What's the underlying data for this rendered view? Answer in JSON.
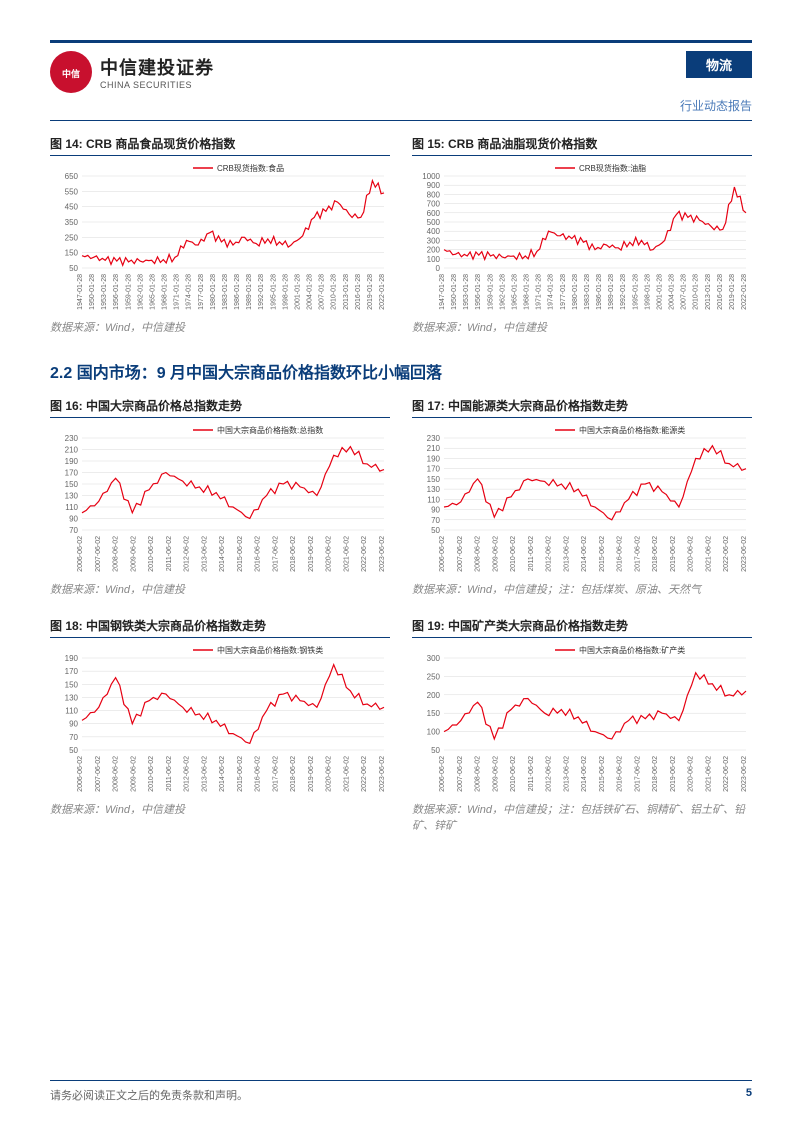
{
  "header": {
    "logo_cn": "中信建投证券",
    "logo_en": "CHINA SECURITIES",
    "logo_abbr": "CITIC",
    "category": "物流",
    "report_type": "行业动态报告"
  },
  "section_title": "2.2 国内市场：9 月中国大宗商品价格指数环比小幅回落",
  "figures": {
    "fig14": {
      "label": "图 14: CRB 商品食品现货价格指数",
      "legend": "CRB现货指数:食品",
      "source": "数据来源：Wind，中信建投",
      "type": "line",
      "line_color": "#e60012",
      "background_color": "#ffffff",
      "grid_color": "#d9d9d9",
      "ylim": [
        50,
        650
      ],
      "ytick_step": 100,
      "x_labels": [
        "1947-01-28",
        "1950-01-28",
        "1953-01-28",
        "1956-01-28",
        "1959-01-28",
        "1962-01-28",
        "1965-01-28",
        "1968-01-28",
        "1971-01-28",
        "1974-01-28",
        "1977-01-28",
        "1980-01-28",
        "1983-01-28",
        "1986-01-28",
        "1989-01-28",
        "1992-01-28",
        "1995-01-28",
        "1998-01-28",
        "2001-01-28",
        "2004-01-28",
        "2007-01-28",
        "2010-01-28",
        "2013-01-28",
        "2016-01-28",
        "2019-01-28",
        "2022-01-28"
      ],
      "values": [
        130,
        120,
        100,
        95,
        90,
        95,
        100,
        105,
        120,
        230,
        200,
        280,
        220,
        200,
        250,
        210,
        240,
        220,
        200,
        260,
        380,
        420,
        480,
        400,
        380,
        620,
        540
      ],
      "label_fontsize": 8,
      "line_width": 1.2
    },
    "fig15": {
      "label": "图 15: CRB 商品油脂现货价格指数",
      "legend": "CRB现货指数:油脂",
      "source": "数据来源：Wind，中信建投",
      "type": "line",
      "line_color": "#e60012",
      "background_color": "#ffffff",
      "grid_color": "#d9d9d9",
      "ylim": [
        0,
        1000
      ],
      "ytick_step": 100,
      "x_labels": [
        "1947-01-28",
        "1950-01-28",
        "1953-01-28",
        "1956-01-28",
        "1959-01-28",
        "1962-01-28",
        "1965-01-28",
        "1968-01-28",
        "1971-01-28",
        "1974-01-28",
        "1977-01-28",
        "1980-01-28",
        "1983-01-28",
        "1986-01-28",
        "1989-01-28",
        "1992-01-28",
        "1995-01-28",
        "1998-01-28",
        "2001-01-28",
        "2004-01-28",
        "2007-01-28",
        "2010-01-28",
        "2013-01-28",
        "2016-01-28",
        "2019-01-28",
        "2022-01-28"
      ],
      "values": [
        200,
        150,
        130,
        140,
        130,
        120,
        130,
        130,
        180,
        400,
        350,
        320,
        280,
        200,
        250,
        220,
        280,
        300,
        200,
        300,
        580,
        550,
        520,
        450,
        420,
        880,
        600
      ],
      "label_fontsize": 8,
      "line_width": 1.2
    },
    "fig16": {
      "label": "图 16: 中国大宗商品价格总指数走势",
      "legend": "中国大宗商品价格指数:总指数",
      "source": "数据来源：Wind，中信建投",
      "type": "line",
      "line_color": "#e60012",
      "background_color": "#ffffff",
      "grid_color": "#d9d9d9",
      "ylim": [
        70,
        230
      ],
      "ytick_step": 20,
      "x_labels": [
        "2006-06-02",
        "2007-06-02",
        "2008-06-02",
        "2009-06-02",
        "2010-06-02",
        "2011-06-02",
        "2012-06-02",
        "2013-06-02",
        "2014-06-02",
        "2015-06-02",
        "2016-06-02",
        "2017-06-02",
        "2018-06-02",
        "2019-06-02",
        "2020-06-02",
        "2021-06-02",
        "2022-06-02",
        "2023-06-02"
      ],
      "values": [
        100,
        120,
        160,
        100,
        140,
        170,
        155,
        145,
        135,
        110,
        90,
        130,
        150,
        145,
        130,
        200,
        215,
        185,
        175
      ],
      "label_fontsize": 8,
      "line_width": 1.2
    },
    "fig17": {
      "label": "图 17: 中国能源类大宗商品价格指数走势",
      "legend": "中国大宗商品价格指数:能源类",
      "source": "数据来源：Wind，中信建投；注：包括煤炭、原油、天然气",
      "type": "line",
      "line_color": "#e60012",
      "background_color": "#ffffff",
      "grid_color": "#d9d9d9",
      "ylim": [
        50,
        230
      ],
      "ytick_step": 20,
      "x_labels": [
        "2006-06-02",
        "2007-06-02",
        "2008-06-02",
        "2009-06-02",
        "2010-06-02",
        "2011-06-02",
        "2012-06-02",
        "2013-06-02",
        "2014-06-02",
        "2015-06-02",
        "2016-06-02",
        "2017-06-02",
        "2018-06-02",
        "2019-06-02",
        "2020-06-02",
        "2021-06-02",
        "2022-06-02",
        "2023-06-02"
      ],
      "values": [
        95,
        105,
        150,
        75,
        115,
        150,
        145,
        140,
        130,
        95,
        70,
        110,
        140,
        125,
        95,
        190,
        215,
        180,
        170
      ],
      "label_fontsize": 8,
      "line_width": 1.2
    },
    "fig18": {
      "label": "图 18: 中国钢铁类大宗商品价格指数走势",
      "legend": "中国大宗商品价格指数:钢铁类",
      "source": "数据来源：Wind，中信建投",
      "type": "line",
      "line_color": "#e60012",
      "background_color": "#ffffff",
      "grid_color": "#d9d9d9",
      "ylim": [
        50,
        190
      ],
      "ytick_step": 20,
      "x_labels": [
        "2006-06-02",
        "2007-06-02",
        "2008-06-02",
        "2009-06-02",
        "2010-06-02",
        "2011-06-02",
        "2012-06-02",
        "2013-06-02",
        "2014-06-02",
        "2015-06-02",
        "2016-06-02",
        "2017-06-02",
        "2018-06-02",
        "2019-06-02",
        "2020-06-02",
        "2021-06-02",
        "2022-06-02",
        "2023-06-02"
      ],
      "values": [
        95,
        115,
        160,
        90,
        125,
        135,
        115,
        105,
        95,
        75,
        60,
        110,
        135,
        125,
        115,
        180,
        140,
        120,
        115
      ],
      "label_fontsize": 8,
      "line_width": 1.2
    },
    "fig19": {
      "label": "图 19: 中国矿产类大宗商品价格指数走势",
      "legend": "中国大宗商品价格指数:矿产类",
      "source": "数据来源：Wind，中信建投；注：包括铁矿石、铜精矿、铝土矿、铅矿、锌矿",
      "type": "line",
      "line_color": "#e60012",
      "background_color": "#ffffff",
      "grid_color": "#d9d9d9",
      "ylim": [
        50,
        300
      ],
      "ytick_step": 50,
      "x_labels": [
        "2006-06-02",
        "2007-06-02",
        "2008-06-02",
        "2009-06-02",
        "2010-06-02",
        "2011-06-02",
        "2012-06-02",
        "2013-06-02",
        "2014-06-02",
        "2015-06-02",
        "2016-06-02",
        "2017-06-02",
        "2018-06-02",
        "2019-06-02",
        "2020-06-02",
        "2021-06-02",
        "2022-06-02",
        "2023-06-02"
      ],
      "values": [
        100,
        130,
        180,
        80,
        160,
        190,
        150,
        160,
        140,
        100,
        80,
        130,
        135,
        150,
        130,
        260,
        230,
        200,
        210
      ],
      "label_fontsize": 8,
      "line_width": 1.2
    }
  },
  "footer": {
    "disclaimer": "请务必阅读正文之后的免责条款和声明。",
    "page_number": "5"
  }
}
